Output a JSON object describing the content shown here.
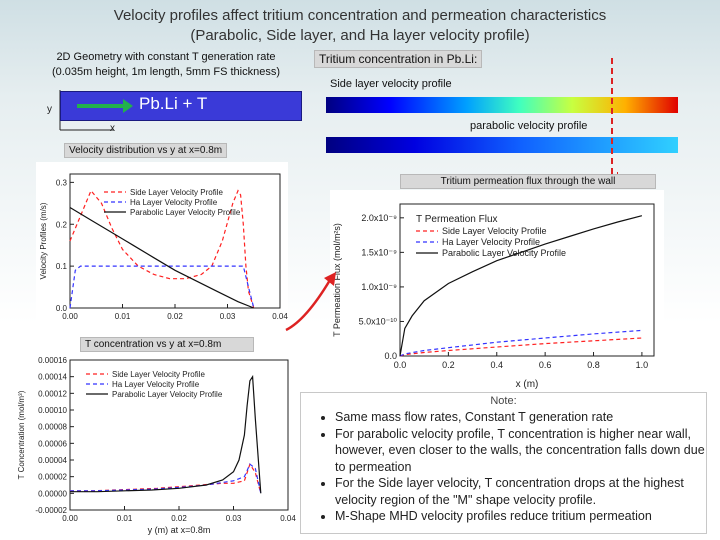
{
  "title_lines": [
    "Velocity profiles affect tritium concentration and permeation characteristics",
    "(Parabolic, Side layer, and Ha layer velocity profile)"
  ],
  "geometry": {
    "line1": "2D Geometry with constant T generation rate",
    "line2": "(0.035m height, 1m length, 5mm FS thickness)",
    "bar_label": "Pb.Li + T",
    "axis_y": "y",
    "axis_x": "x"
  },
  "tritium_conc_label": "Tritium concentration in Pb.Li:",
  "side_profile_label": "Side layer velocity profile",
  "parabolic_profile_label": "parabolic velocity profile",
  "vel_box_label": "Velocity distribution vs y at x=0.8m",
  "perm_box_label": "Tritium permeation flux through the wall",
  "tconc_box_label": "T concentration vs y at x=0.8m",
  "note": {
    "title": "Note:",
    "items": [
      "Same mass flow rates, Constant T generation rate",
      "For parabolic velocity profile, T concentration is higher near wall, however, even closer to the walls, the concentration falls down due to permeation",
      "For the Side layer velocity, T concentration  drops at the highest velocity region of the \"M\" shape velocity profile.",
      "M-Shape MHD velocity profiles reduce tritium permeation"
    ]
  },
  "colors": {
    "side": "#ff2020",
    "ha": "#3333ff",
    "parabolic": "#111111",
    "arrow": "#dd2222"
  },
  "chart_data": [
    {
      "type": "line",
      "xlabel": "",
      "ylabel": "Velocity Profiles (m/s)",
      "xlim": [
        0,
        0.04
      ],
      "ylim": [
        0,
        0.32
      ],
      "xticks": [
        "0.00",
        "0.01",
        "0.02",
        "0.03",
        "0.04"
      ],
      "xtick_vals": [
        0,
        0.01,
        0.02,
        0.03,
        0.04
      ],
      "yticks": [
        "0.0",
        "0.1",
        "0.2",
        "0.3"
      ],
      "ytick_vals": [
        0,
        0.1,
        0.2,
        0.3
      ],
      "series": [
        {
          "name": "Side Layer Velocity Profile",
          "style": "dash",
          "x": [
            0,
            0.002,
            0.004,
            0.006,
            0.008,
            0.01,
            0.013,
            0.016,
            0.019,
            0.022,
            0.025,
            0.027,
            0.029,
            0.031,
            0.032,
            0.0325,
            0.033,
            0.0335,
            0.034,
            0.035
          ],
          "y": [
            0.16,
            0.22,
            0.28,
            0.25,
            0.19,
            0.14,
            0.1,
            0.08,
            0.07,
            0.07,
            0.08,
            0.1,
            0.16,
            0.25,
            0.28,
            0.27,
            0.2,
            0.1,
            0.04,
            0.0
          ]
        },
        {
          "name": "Ha Layer Velocity Profile",
          "style": "dash",
          "x": [
            0,
            0.001,
            0.002,
            0.033,
            0.034,
            0.035
          ],
          "y": [
            0,
            0.09,
            0.1,
            0.1,
            0.05,
            0.0
          ]
        },
        {
          "name": "Parabolic Layer Velocity Profile",
          "style": "solid",
          "x": [
            0,
            0.004,
            0.008,
            0.012,
            0.016,
            0.02,
            0.024,
            0.028,
            0.032,
            0.035
          ],
          "y": [
            0.24,
            0.21,
            0.18,
            0.15,
            0.12,
            0.09,
            0.065,
            0.04,
            0.015,
            0.0
          ]
        }
      ]
    },
    {
      "type": "line",
      "title": "T Permeation Flux",
      "xlabel": "x (m)",
      "ylabel": "T Permeation Flux (mol/m²s)",
      "xlim": [
        0,
        1.05
      ],
      "ylim": [
        0,
        2.2e-09
      ],
      "xticks": [
        "0.0",
        "0.2",
        "0.4",
        "0.6",
        "0.8",
        "1.0"
      ],
      "xtick_vals": [
        0,
        0.2,
        0.4,
        0.6,
        0.8,
        1.0
      ],
      "yticks": [
        "0.0",
        "5.0x10⁻¹⁰",
        "1.0x10⁻⁹",
        "1.5x10⁻⁹",
        "2.0x10⁻⁹"
      ],
      "ytick_vals": [
        0,
        5e-10,
        1e-09,
        1.5e-09,
        2e-09
      ],
      "series": [
        {
          "name": "Side Layer Velocity Profile",
          "style": "dash",
          "x": [
            0,
            0.02,
            0.1,
            0.2,
            0.4,
            0.6,
            0.8,
            1.0
          ],
          "y": [
            0,
            2e-11,
            5e-11,
            8e-11,
            1.3e-10,
            1.8e-10,
            2.2e-10,
            2.6e-10
          ]
        },
        {
          "name": "Ha Layer Velocity Profile",
          "style": "dash",
          "x": [
            0,
            0.02,
            0.1,
            0.2,
            0.4,
            0.6,
            0.8,
            1.0
          ],
          "y": [
            0,
            3e-11,
            8e-11,
            1.2e-10,
            2e-10,
            2.6e-10,
            3.2e-10,
            3.7e-10
          ]
        },
        {
          "name": "Parabolic Layer Velocity Profile",
          "style": "solid",
          "x": [
            0,
            0.02,
            0.05,
            0.1,
            0.2,
            0.3,
            0.4,
            0.5,
            0.6,
            0.7,
            0.8,
            0.9,
            1.0
          ],
          "y": [
            0,
            4e-10,
            5.8e-10,
            8e-10,
            1.05e-09,
            1.22e-09,
            1.38e-09,
            1.5e-09,
            1.62e-09,
            1.73e-09,
            1.84e-09,
            1.94e-09,
            2.03e-09
          ]
        }
      ]
    },
    {
      "type": "line",
      "xlabel": "y (m) at x=0.8m",
      "ylabel": "T Concentration (mol/m³)",
      "xlim": [
        0,
        0.04
      ],
      "ylim": [
        -2e-05,
        0.00016
      ],
      "xticks": [
        "0.00",
        "0.01",
        "0.02",
        "0.03",
        "0.04"
      ],
      "xtick_vals": [
        0,
        0.01,
        0.02,
        0.03,
        0.04
      ],
      "yticks": [
        "-0.00002",
        "0.00000",
        "0.00002",
        "0.00004",
        "0.00006",
        "0.00008",
        "0.00010",
        "0.00012",
        "0.00014",
        "0.00016"
      ],
      "ytick_vals": [
        -2e-05,
        0,
        2e-05,
        4e-05,
        6e-05,
        8e-05,
        0.0001,
        0.00012,
        0.00014,
        0.00016
      ],
      "series": [
        {
          "name": "Side Layer Velocity Profile",
          "style": "dash",
          "x": [
            0,
            0.004,
            0.008,
            0.012,
            0.016,
            0.02,
            0.024,
            0.028,
            0.03,
            0.032,
            0.033,
            0.034,
            0.035
          ],
          "y": [
            3e-06,
            3e-06,
            4e-06,
            5e-06,
            6e-06,
            8e-06,
            1e-05,
            1.2e-05,
            1.2e-05,
            1.5e-05,
            3.5e-05,
            2.5e-05,
            0
          ]
        },
        {
          "name": "Ha Layer Velocity Profile",
          "style": "dash",
          "x": [
            0,
            0.005,
            0.01,
            0.015,
            0.02,
            0.025,
            0.03,
            0.032,
            0.033,
            0.034,
            0.035
          ],
          "y": [
            3e-06,
            3e-06,
            4e-06,
            5e-06,
            7e-06,
            1e-05,
            1.5e-05,
            2e-05,
            3.5e-05,
            3e-05,
            0
          ]
        },
        {
          "name": "Parabolic Layer Velocity Profile",
          "style": "solid",
          "x": [
            0,
            0.005,
            0.01,
            0.015,
            0.02,
            0.025,
            0.028,
            0.03,
            0.031,
            0.032,
            0.0325,
            0.033,
            0.0335,
            0.034,
            0.035
          ],
          "y": [
            2e-06,
            2e-06,
            3e-06,
            4e-06,
            6e-06,
            1e-05,
            1.6e-05,
            2.6e-05,
            4e-05,
            7e-05,
            0.000105,
            0.000135,
            0.00014,
            9e-05,
            0
          ]
        }
      ]
    }
  ]
}
